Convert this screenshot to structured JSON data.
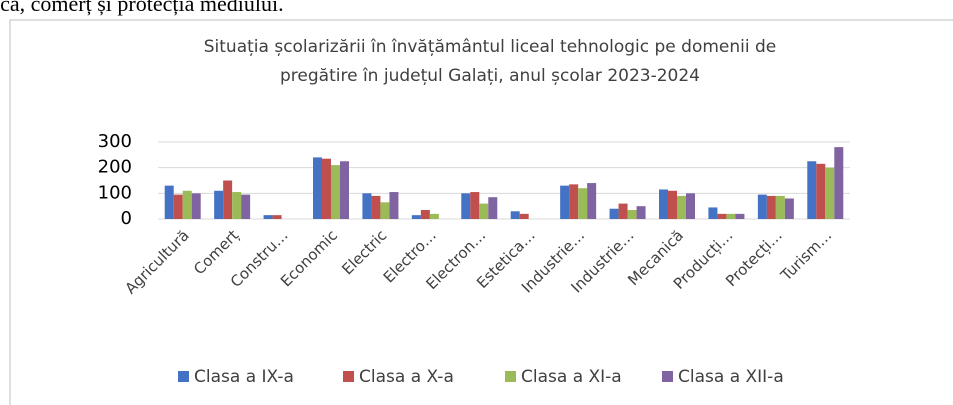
{
  "page_text": "ica, comerț și protecția mediului.",
  "chart_data": {
    "type": "bar",
    "title": "Situația școlarizării în învățământul liceal tehnologic pe domenii de pregătire în județul Galați, anul școlar 2023-2024",
    "title_lines": [
      "Situația școlarizării în învățământul liceal tehnologic pe domenii de",
      "pregătire în județul Galați, anul școlar 2023-2024"
    ],
    "categories": [
      "Agricultură",
      "Comerț",
      "Constru…",
      "Economic",
      "Electric",
      "Electro…",
      "Electron…",
      "Estetica…",
      "Industrie…",
      "Industrie…",
      "Mecanică",
      "Producți…",
      "Protecți…",
      "Turism…"
    ],
    "series": [
      {
        "name": "Clasa a IX-a",
        "color": "#4472c4",
        "values": [
          130,
          110,
          15,
          240,
          100,
          15,
          100,
          30,
          130,
          40,
          115,
          45,
          95,
          225
        ]
      },
      {
        "name": "Clasa a X-a",
        "color": "#c0504d",
        "values": [
          95,
          150,
          15,
          235,
          90,
          35,
          105,
          20,
          135,
          60,
          110,
          20,
          90,
          215
        ]
      },
      {
        "name": "Clasa a XI-a",
        "color": "#9bbb59",
        "values": [
          110,
          105,
          0,
          210,
          65,
          20,
          60,
          0,
          120,
          35,
          90,
          20,
          90,
          200
        ]
      },
      {
        "name": "Clasa a XII-a",
        "color": "#8064a2",
        "values": [
          100,
          95,
          0,
          225,
          105,
          0,
          85,
          0,
          140,
          50,
          100,
          20,
          80,
          280
        ]
      }
    ],
    "ylim": [
      0,
      300
    ],
    "yticks": [
      0,
      100,
      200,
      300
    ],
    "grid": true,
    "legend": "bottom"
  }
}
